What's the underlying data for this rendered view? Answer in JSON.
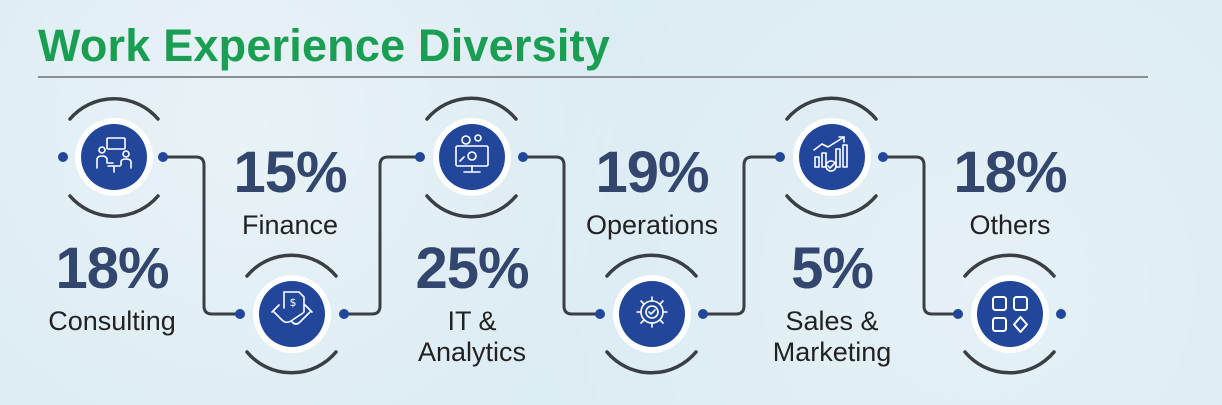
{
  "title": "Work Experience Diversity",
  "colors": {
    "title": "#1a9e52",
    "node_fill": "#22479a",
    "path": "#3a3f45",
    "percent": "#33466e"
  },
  "chart_data": {
    "type": "table",
    "title": "Work Experience Diversity",
    "categories": [
      "Consulting",
      "Finance",
      "IT & Analytics",
      "Operations",
      "Sales & Marketing",
      "Others"
    ],
    "values": [
      18,
      15,
      25,
      19,
      5,
      18
    ],
    "unit": "%"
  },
  "nodes": [
    {
      "icon": "meeting-icon"
    },
    {
      "icon": "handshake-icon"
    },
    {
      "icon": "monitor-gears-icon"
    },
    {
      "icon": "gear-check-icon"
    },
    {
      "icon": "growth-chart-icon"
    },
    {
      "icon": "app-grid-icon"
    }
  ],
  "stats": [
    {
      "percent": "18%",
      "label": "Consulting"
    },
    {
      "percent": "15%",
      "label": "Finance"
    },
    {
      "percent": "25%",
      "label": "IT &\nAnalytics"
    },
    {
      "percent": "19%",
      "label": "Operations"
    },
    {
      "percent": "5%",
      "label": "Sales &\nMarketing"
    },
    {
      "percent": "18%",
      "label": "Others"
    }
  ]
}
